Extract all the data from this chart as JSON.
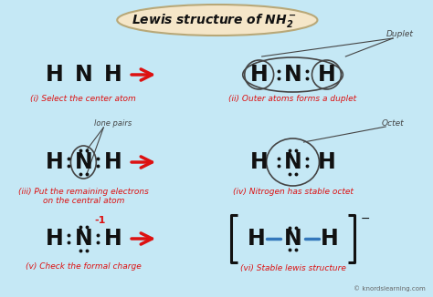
{
  "bg_color": "#c5e8f5",
  "title_bg": "#f5e6c8",
  "title_border": "#b8a878",
  "red": "#dd1111",
  "black": "#111111",
  "dark_gray": "#444444",
  "gray": "#666666",
  "blue": "#3377bb",
  "panel_labels": [
    "(i) Select the center atom",
    "(ii) Outer atoms forms a duplet",
    "(iii) Put the remaining electrons\non the central atom",
    "(iv) Nitrogen has stable octet",
    "(v) Check the formal charge",
    "(vi) Stable lewis structure"
  ],
  "watermark": "© knordslearning.com",
  "title": "Lewis structure of NH",
  "title_sub2": "2",
  "title_minus": "⁻"
}
